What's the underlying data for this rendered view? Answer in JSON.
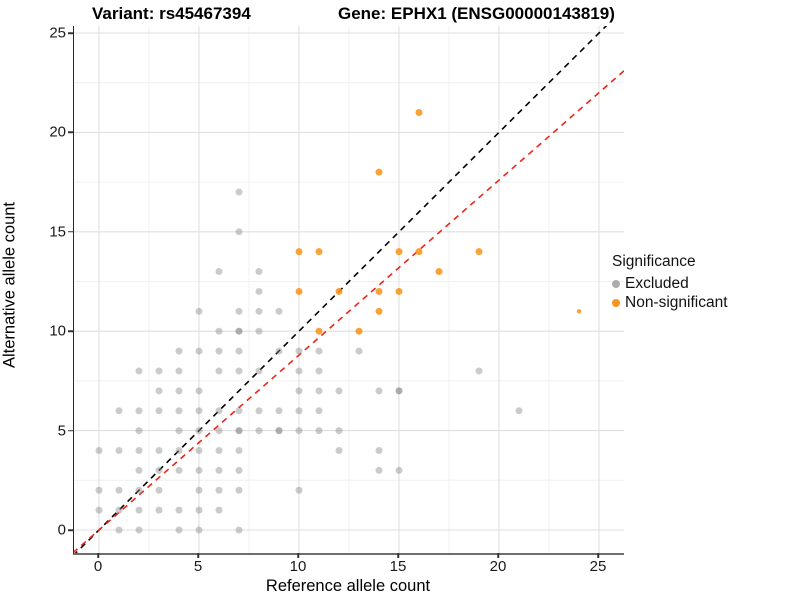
{
  "titles": {
    "variant": "Variant: rs45467394",
    "gene": "Gene: EPHX1 (ENSG00000143819)"
  },
  "axes": {
    "x_label": "Reference allele count",
    "y_label": "Alternative allele count",
    "x_ticks": [
      0,
      5,
      10,
      15,
      20,
      25
    ],
    "y_ticks": [
      0,
      5,
      10,
      15,
      20,
      25
    ],
    "minor_ticks": [
      2.5,
      7.5,
      12.5,
      17.5,
      22.5
    ],
    "x_range": [
      -1.25,
      26.25
    ],
    "y_range": [
      -1.25,
      25.35
    ],
    "grid": "on"
  },
  "legend": {
    "position": "right",
    "title": "Significance",
    "items": [
      {
        "label": "Excluded",
        "color": "#ADADAD"
      },
      {
        "label": "Non-significant",
        "color": "#F9951D"
      }
    ]
  },
  "colors": {
    "excluded_point": "#8C8C8C",
    "excluded_opacity": 0.45,
    "nonsig_point": "#F9951D",
    "nonsig_opacity": 0.88,
    "identity_line": "#000000",
    "ratio_line": "#F02418",
    "grid_major": "#DFDFDF",
    "grid_minor": "#F0F0F0"
  },
  "chart_data": {
    "type": "scatter",
    "title": "Variant: rs45467394 — Gene: EPHX1 (ENSG00000143819)",
    "xlabel": "Reference allele count",
    "ylabel": "Alternative allele count",
    "xlim": [
      -1.25,
      26.25
    ],
    "ylim": [
      -1.25,
      25.35
    ],
    "default_point_radius": 3.5,
    "series": [
      {
        "name": "Excluded",
        "points": [
          [
            1,
            0
          ],
          [
            2,
            0
          ],
          [
            4,
            0
          ],
          [
            5,
            0
          ],
          [
            7,
            0
          ],
          [
            0,
            1
          ],
          [
            1,
            1
          ],
          [
            2,
            1
          ],
          [
            3,
            1
          ],
          [
            4,
            1
          ],
          [
            5,
            1
          ],
          [
            6,
            1
          ],
          [
            0,
            2
          ],
          [
            1,
            2
          ],
          [
            2,
            2
          ],
          [
            3,
            2
          ],
          [
            5,
            2
          ],
          [
            6,
            2
          ],
          [
            7,
            2
          ],
          [
            10,
            2
          ],
          [
            2,
            3
          ],
          [
            3,
            3
          ],
          [
            4,
            3
          ],
          [
            5,
            3
          ],
          [
            6,
            3
          ],
          [
            7,
            3
          ],
          [
            14,
            3
          ],
          [
            15,
            3
          ],
          [
            0,
            4
          ],
          [
            1,
            4
          ],
          [
            2,
            4
          ],
          [
            3,
            4
          ],
          [
            4,
            4
          ],
          [
            5,
            4
          ],
          [
            6,
            4
          ],
          [
            7,
            4
          ],
          [
            12,
            4
          ],
          [
            14,
            4
          ],
          [
            2,
            5
          ],
          [
            4,
            5
          ],
          [
            5,
            5
          ],
          [
            6,
            5
          ],
          [
            7,
            5
          ],
          [
            7,
            5
          ],
          [
            8,
            5
          ],
          [
            9,
            5
          ],
          [
            9,
            5
          ],
          [
            10,
            5
          ],
          [
            11,
            5
          ],
          [
            12,
            5
          ],
          [
            1,
            6
          ],
          [
            2,
            6
          ],
          [
            3,
            6
          ],
          [
            4,
            6
          ],
          [
            5,
            6
          ],
          [
            6,
            6
          ],
          [
            7,
            6
          ],
          [
            8,
            6
          ],
          [
            9,
            6
          ],
          [
            10,
            6
          ],
          [
            11,
            6
          ],
          [
            21,
            6
          ],
          [
            3,
            7
          ],
          [
            4,
            7
          ],
          [
            5,
            7
          ],
          [
            10,
            7
          ],
          [
            11,
            7
          ],
          [
            12,
            7
          ],
          [
            14,
            7
          ],
          [
            15,
            7
          ],
          [
            15,
            7
          ],
          [
            2,
            8
          ],
          [
            3,
            8
          ],
          [
            4,
            8
          ],
          [
            6,
            8
          ],
          [
            7,
            8
          ],
          [
            8,
            8
          ],
          [
            10,
            8
          ],
          [
            11,
            8
          ],
          [
            19,
            8
          ],
          [
            4,
            9
          ],
          [
            5,
            9
          ],
          [
            6,
            9
          ],
          [
            7,
            9
          ],
          [
            9,
            9
          ],
          [
            10,
            9
          ],
          [
            11,
            9
          ],
          [
            13,
            9
          ],
          [
            6,
            10
          ],
          [
            7,
            10
          ],
          [
            7,
            10
          ],
          [
            8,
            10
          ],
          [
            5,
            11
          ],
          [
            7,
            11
          ],
          [
            8,
            11
          ],
          [
            9,
            11
          ],
          [
            8,
            12
          ],
          [
            6,
            13
          ],
          [
            8,
            13
          ],
          [
            7,
            15
          ],
          [
            7,
            17
          ]
        ]
      },
      {
        "name": "Non-significant",
        "points": [
          [
            11,
            10
          ],
          [
            13,
            10
          ],
          [
            14,
            11
          ],
          [
            24,
            11,
            2.2
          ],
          [
            10,
            12
          ],
          [
            12,
            12
          ],
          [
            14,
            12
          ],
          [
            15,
            12
          ],
          [
            17,
            13
          ],
          [
            10,
            14
          ],
          [
            11,
            14
          ],
          [
            15,
            14
          ],
          [
            16,
            14
          ],
          [
            19,
            14
          ],
          [
            14,
            18
          ],
          [
            16,
            21
          ]
        ]
      }
    ],
    "lines": [
      {
        "name": "identity",
        "slope": 1.0,
        "intercept": 0,
        "style": "dashed"
      },
      {
        "name": "expected-ratio",
        "slope": 0.88,
        "intercept": 0,
        "style": "dashed"
      }
    ]
  }
}
